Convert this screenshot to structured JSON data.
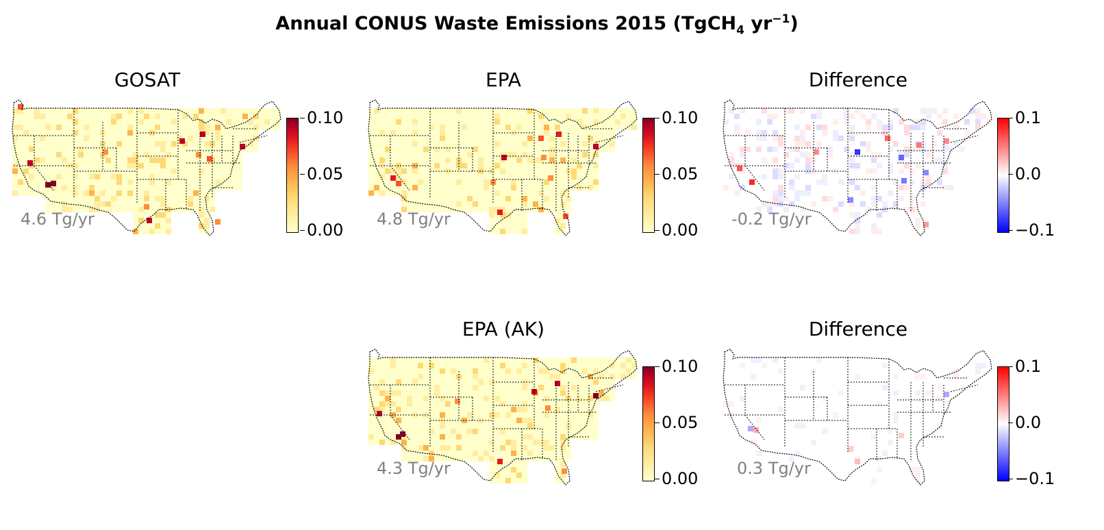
{
  "figure": {
    "title_prefix": "Annual CONUS Waste Emissions 2015 (TgCH",
    "title_sub": "4",
    "title_mid": " yr",
    "title_sup": "−1",
    "title_suffix": ")"
  },
  "chart_data": [
    {
      "type": "heatmap",
      "title": "GOSAT",
      "annotation": "4.6 Tg/yr",
      "colormap": "YlOrRd",
      "colorbar_range": [
        0.0,
        0.1
      ],
      "colorbar_ticks": [
        "0.00",
        "0.05",
        "0.10"
      ]
    },
    {
      "type": "heatmap",
      "title": "EPA",
      "annotation": "4.8 Tg/yr",
      "colormap": "YlOrRd",
      "colorbar_range": [
        0.0,
        0.1
      ],
      "colorbar_ticks": [
        "0.00",
        "0.05",
        "0.10"
      ]
    },
    {
      "type": "heatmap",
      "title": "Difference",
      "annotation": "-0.2 Tg/yr",
      "colormap": "bwr",
      "colorbar_range": [
        -0.1,
        0.1
      ],
      "colorbar_ticks": [
        "−0.1",
        "0.0",
        "0.1"
      ]
    },
    {
      "type": "heatmap",
      "title": "EPA (AK)",
      "annotation": "4.3 Tg/yr",
      "colormap": "YlOrRd",
      "colorbar_range": [
        0.0,
        0.1
      ],
      "colorbar_ticks": [
        "0.00",
        "0.05",
        "0.10"
      ]
    },
    {
      "type": "heatmap",
      "title": "Difference",
      "annotation": "0.3 Tg/yr",
      "colormap": "bwr",
      "colorbar_range": [
        -0.1,
        0.1
      ],
      "colorbar_ticks": [
        "−0.1",
        "0.0",
        "0.1"
      ]
    }
  ]
}
